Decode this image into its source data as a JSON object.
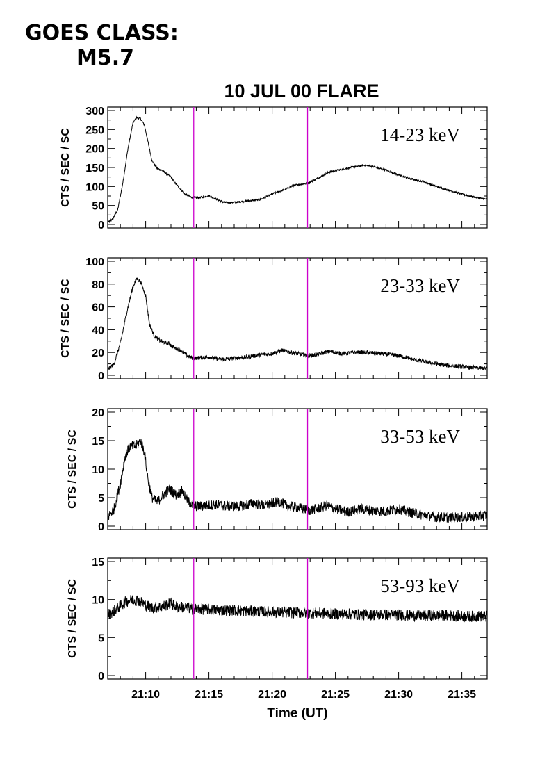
{
  "header": {
    "goes_line1": "GOES CLASS:",
    "goes_line2": "M5.7"
  },
  "chart_data": {
    "type": "line",
    "title": "10 JUL 00 FLARE",
    "xlabel": "Time (UT)",
    "xlim_minutes_after_21h": [
      7,
      37
    ],
    "x_ticks": [
      "21:10",
      "21:15",
      "21:20",
      "21:25",
      "21:30",
      "21:35"
    ],
    "x_tick_minutes_after_21h": [
      10,
      15,
      20,
      25,
      30,
      35
    ],
    "x_minor_tick_step_minutes": 1,
    "vertical_markers_minutes_after_21h": [
      13.8,
      22.8
    ],
    "marker_color": "#cc00cc",
    "line_color": "#000000",
    "panels": [
      {
        "series_name": "14-23 keV",
        "ylabel": "CTS / SEC / SC",
        "ylim": [
          0,
          300
        ],
        "y_ticks": [
          0,
          50,
          100,
          150,
          200,
          250,
          300
        ],
        "y_tick_labels": [
          "0",
          "50",
          "100",
          "150",
          "200",
          "250",
          "300"
        ],
        "noise": 2.5,
        "points": [
          [
            7.0,
            5
          ],
          [
            7.4,
            15
          ],
          [
            7.8,
            40
          ],
          [
            8.2,
            110
          ],
          [
            8.6,
            200
          ],
          [
            9.0,
            268
          ],
          [
            9.3,
            282
          ],
          [
            9.6,
            278
          ],
          [
            9.9,
            262
          ],
          [
            10.2,
            215
          ],
          [
            10.5,
            168
          ],
          [
            10.9,
            148
          ],
          [
            11.3,
            142
          ],
          [
            11.7,
            132
          ],
          [
            12.0,
            125
          ],
          [
            12.3,
            110
          ],
          [
            12.7,
            95
          ],
          [
            13.1,
            80
          ],
          [
            13.6,
            72
          ],
          [
            14.0,
            70
          ],
          [
            14.5,
            72
          ],
          [
            15.0,
            76
          ],
          [
            15.5,
            68
          ],
          [
            16.2,
            58
          ],
          [
            17.0,
            58
          ],
          [
            18.0,
            62
          ],
          [
            19.0,
            65
          ],
          [
            20.0,
            80
          ],
          [
            21.0,
            92
          ],
          [
            21.5,
            100
          ],
          [
            22.0,
            105
          ],
          [
            22.8,
            108
          ],
          [
            23.5,
            120
          ],
          [
            24.5,
            138
          ],
          [
            25.5,
            145
          ],
          [
            26.5,
            152
          ],
          [
            27.3,
            156
          ],
          [
            28.0,
            152
          ],
          [
            29.0,
            143
          ],
          [
            30.0,
            130
          ],
          [
            31.0,
            120
          ],
          [
            32.0,
            112
          ],
          [
            33.0,
            100
          ],
          [
            34.0,
            90
          ],
          [
            35.0,
            80
          ],
          [
            36.0,
            72
          ],
          [
            37.0,
            66
          ]
        ]
      },
      {
        "series_name": "23-33 keV",
        "ylabel": "CTS / SEC / SC",
        "ylim": [
          0,
          100
        ],
        "y_ticks": [
          0,
          20,
          40,
          60,
          80,
          100
        ],
        "y_tick_labels": [
          "0",
          "20",
          "40",
          "60",
          "80",
          "100"
        ],
        "noise": 1.8,
        "points": [
          [
            7.0,
            5
          ],
          [
            7.5,
            10
          ],
          [
            8.0,
            28
          ],
          [
            8.5,
            55
          ],
          [
            9.0,
            78
          ],
          [
            9.3,
            85
          ],
          [
            9.6,
            82
          ],
          [
            10.0,
            70
          ],
          [
            10.3,
            45
          ],
          [
            10.7,
            34
          ],
          [
            11.2,
            30
          ],
          [
            11.8,
            28
          ],
          [
            12.3,
            24
          ],
          [
            12.8,
            22
          ],
          [
            13.3,
            17
          ],
          [
            13.8,
            15
          ],
          [
            15.0,
            16
          ],
          [
            16.0,
            14
          ],
          [
            17.0,
            15
          ],
          [
            18.0,
            16
          ],
          [
            19.0,
            18
          ],
          [
            20.0,
            19
          ],
          [
            20.8,
            22
          ],
          [
            21.5,
            20
          ],
          [
            22.0,
            19
          ],
          [
            22.8,
            17
          ],
          [
            23.5,
            18
          ],
          [
            24.5,
            21
          ],
          [
            25.5,
            19
          ],
          [
            26.5,
            20
          ],
          [
            27.5,
            20
          ],
          [
            28.5,
            19
          ],
          [
            29.5,
            18
          ],
          [
            30.5,
            16
          ],
          [
            31.5,
            13
          ],
          [
            32.5,
            11
          ],
          [
            33.5,
            9
          ],
          [
            34.5,
            8
          ],
          [
            35.5,
            7
          ],
          [
            37.0,
            6
          ]
        ]
      },
      {
        "series_name": "33-53 keV",
        "ylabel": "CTS / SEC / SC",
        "ylim": [
          0,
          20
        ],
        "y_ticks": [
          0,
          5,
          10,
          15,
          20
        ],
        "y_tick_labels": [
          "0",
          "5",
          "10",
          "15",
          "20"
        ],
        "noise": 0.9,
        "points": [
          [
            7.0,
            1.5
          ],
          [
            7.5,
            3
          ],
          [
            8.0,
            7.5
          ],
          [
            8.4,
            12.5
          ],
          [
            8.8,
            14
          ],
          [
            9.2,
            14
          ],
          [
            9.6,
            15
          ],
          [
            9.9,
            13
          ],
          [
            10.2,
            8
          ],
          [
            10.5,
            5
          ],
          [
            10.9,
            4.2
          ],
          [
            11.4,
            5.5
          ],
          [
            11.9,
            6.5
          ],
          [
            12.4,
            5.5
          ],
          [
            12.9,
            6.2
          ],
          [
            13.3,
            4.5
          ],
          [
            13.8,
            3.5
          ],
          [
            14.5,
            3.5
          ],
          [
            15.5,
            3.8
          ],
          [
            16.5,
            3.5
          ],
          [
            17.5,
            3.5
          ],
          [
            18.5,
            4.0
          ],
          [
            19.5,
            3.6
          ],
          [
            20.5,
            4.3
          ],
          [
            21.3,
            3.5
          ],
          [
            22.0,
            3.3
          ],
          [
            22.8,
            2.8
          ],
          [
            23.5,
            3.0
          ],
          [
            24.3,
            3.6
          ],
          [
            25.0,
            3.0
          ],
          [
            26.0,
            2.5
          ],
          [
            27.0,
            3.0
          ],
          [
            28.0,
            2.7
          ],
          [
            29.0,
            2.6
          ],
          [
            30.0,
            3.0
          ],
          [
            31.0,
            2.4
          ],
          [
            32.0,
            1.9
          ],
          [
            33.0,
            1.6
          ],
          [
            34.0,
            1.5
          ],
          [
            35.0,
            1.6
          ],
          [
            36.0,
            1.7
          ],
          [
            37.0,
            1.9
          ]
        ]
      },
      {
        "series_name": "53-93 keV",
        "ylabel": "CTS / SEC / SC",
        "ylim": [
          0,
          15
        ],
        "y_ticks": [
          0,
          5,
          10,
          15
        ],
        "y_tick_labels": [
          "0",
          "5",
          "10",
          "15"
        ],
        "noise": 0.75,
        "points": [
          [
            7.0,
            8.0
          ],
          [
            7.5,
            8.5
          ],
          [
            8.0,
            9.2
          ],
          [
            8.5,
            9.8
          ],
          [
            9.0,
            10.0
          ],
          [
            9.5,
            9.8
          ],
          [
            10.0,
            9.3
          ],
          [
            10.5,
            8.9
          ],
          [
            11.0,
            9.0
          ],
          [
            11.5,
            9.2
          ],
          [
            12.0,
            9.5
          ],
          [
            12.5,
            9.0
          ],
          [
            13.0,
            9.0
          ],
          [
            13.8,
            8.8
          ],
          [
            15.0,
            8.7
          ],
          [
            16.0,
            8.6
          ],
          [
            17.0,
            8.6
          ],
          [
            18.0,
            8.5
          ],
          [
            19.0,
            8.4
          ],
          [
            20.0,
            8.4
          ],
          [
            21.0,
            8.3
          ],
          [
            22.0,
            8.3
          ],
          [
            23.0,
            8.2
          ],
          [
            24.0,
            8.2
          ],
          [
            25.0,
            8.1
          ],
          [
            26.0,
            8.1
          ],
          [
            27.0,
            8.0
          ],
          [
            28.0,
            8.0
          ],
          [
            29.0,
            8.0
          ],
          [
            30.0,
            8.0
          ],
          [
            31.0,
            7.9
          ],
          [
            32.0,
            7.9
          ],
          [
            33.0,
            7.9
          ],
          [
            34.0,
            7.9
          ],
          [
            35.0,
            7.8
          ],
          [
            36.0,
            7.8
          ],
          [
            37.0,
            7.8
          ]
        ]
      }
    ]
  }
}
